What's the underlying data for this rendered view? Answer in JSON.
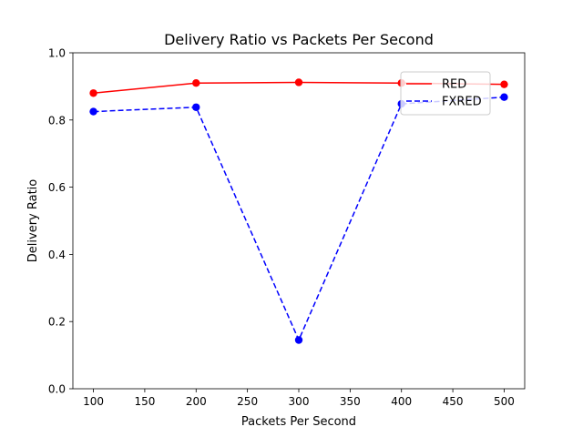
{
  "chart_data": {
    "type": "line",
    "title": "Delivery Ratio vs Packets Per Second",
    "xlabel": "Packets Per Second",
    "ylabel": "Delivery Ratio",
    "x": [
      100,
      200,
      300,
      400,
      500
    ],
    "xlim": [
      80,
      520
    ],
    "ylim": [
      0.0,
      1.0
    ],
    "x_ticks": [
      100,
      150,
      200,
      250,
      300,
      350,
      400,
      450,
      500
    ],
    "y_ticks": [
      0.0,
      0.2,
      0.4,
      0.6,
      0.8,
      1.0
    ],
    "y_tick_labels": [
      "0.0",
      "0.2",
      "0.4",
      "0.6",
      "0.8",
      "1.0"
    ],
    "grid": false,
    "legend_position": "upper-right",
    "series": [
      {
        "name": "RED",
        "values": [
          0.88,
          0.91,
          0.912,
          0.91,
          0.906
        ],
        "color": "#ff0000",
        "style": "solid",
        "marker": "circle"
      },
      {
        "name": "FXRED",
        "values": [
          0.825,
          0.838,
          0.145,
          0.848,
          0.868
        ],
        "color": "#0000ff",
        "style": "dashed",
        "marker": "circle"
      }
    ]
  }
}
